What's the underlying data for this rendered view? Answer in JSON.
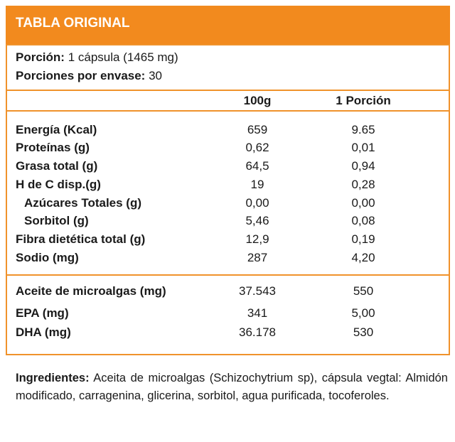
{
  "header": {
    "title": "TABLA ORIGINAL"
  },
  "serving": {
    "portion_label": "Porción:",
    "portion_value": "1 cápsula (1465 mg)",
    "servings_label": "Porciones por envase:",
    "servings_value": "30"
  },
  "table": {
    "columns": [
      "100g",
      "1 Porción"
    ],
    "rows": [
      [
        "Energía (Kcal)",
        "659",
        "9.65"
      ],
      [
        "Proteínas (g)",
        "0,62",
        "0,01"
      ],
      [
        "Grasa total (g)",
        "64,5",
        "0,94"
      ],
      [
        "H de C disp.(g)",
        "19",
        "0,28"
      ],
      [
        "Azúcares Totales (g)",
        "0,00",
        "0,00"
      ],
      [
        "Sorbitol (g)",
        "5,46",
        "0,08"
      ],
      [
        "Fibra dietética total (g)",
        "12,9",
        "0,19"
      ],
      [
        "Sodio (mg)",
        "287",
        "4,20"
      ],
      [
        "Aceite de microalgas (mg)",
        "37.543",
        "550"
      ],
      [
        "EPA (mg)",
        "341",
        "5,00"
      ],
      [
        "DHA (mg)",
        "36.178",
        "530"
      ]
    ]
  },
  "ingredients": {
    "label": "Ingredientes:",
    "text": "Aceita de microalgas (Schizochytrium sp), cápsula vegtal: Almidón modificado, carragenina, glicerina, sorbitol, agua purificada, tocoferoles."
  }
}
